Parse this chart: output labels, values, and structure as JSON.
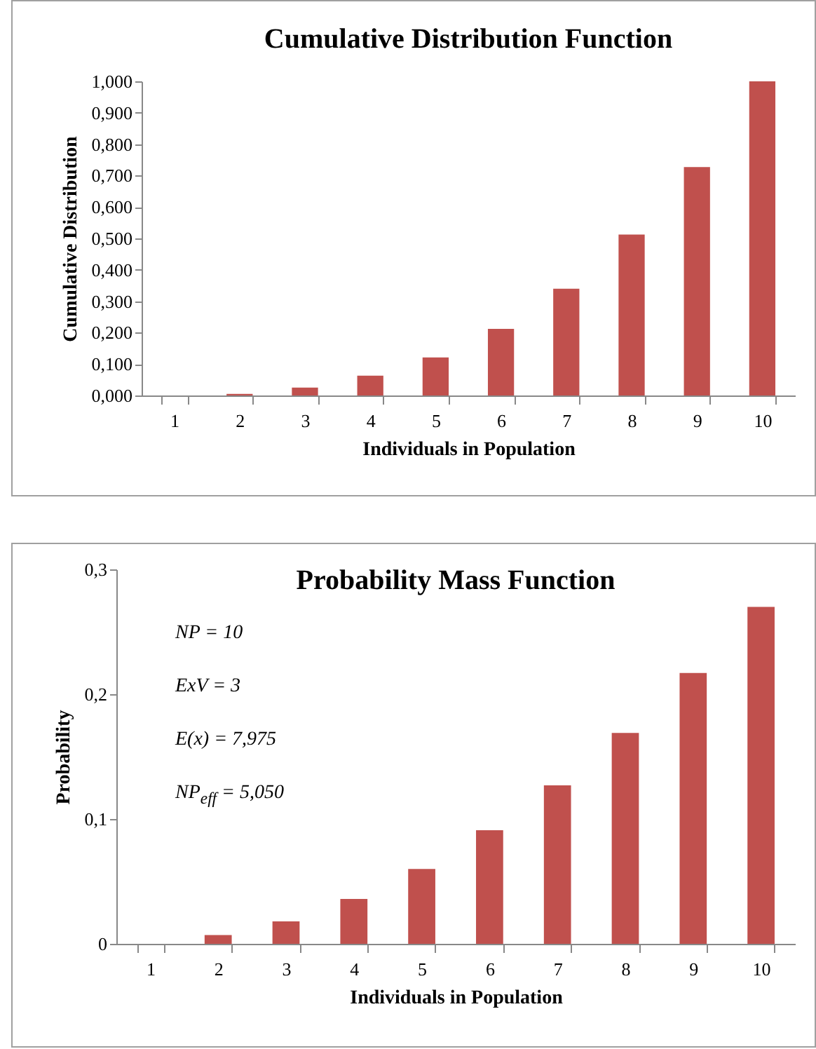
{
  "chart_data": [
    {
      "type": "bar",
      "title": "Cumulative Distribution  Function",
      "xlabel": "Individuals in Population",
      "ylabel": "Cumulative Distribution",
      "categories": [
        "1",
        "2",
        "3",
        "4",
        "5",
        "6",
        "7",
        "8",
        "9",
        "10"
      ],
      "values": [
        0,
        0.005,
        0.025,
        0.063,
        0.121,
        0.212,
        0.34,
        0.512,
        0.727,
        1.0
      ],
      "color": "#c0504d",
      "ylim": [
        0,
        1
      ],
      "yticks": [
        {
          "value": 0,
          "label": "0,000"
        },
        {
          "value": 0.1,
          "label": "0,100"
        },
        {
          "value": 0.2,
          "label": "0,200"
        },
        {
          "value": 0.3,
          "label": "0,300"
        },
        {
          "value": 0.4,
          "label": "0,400"
        },
        {
          "value": 0.5,
          "label": "0,500"
        },
        {
          "value": 0.6,
          "label": "0,600"
        },
        {
          "value": 0.7,
          "label": "0,700"
        },
        {
          "value": 0.8,
          "label": "0,800"
        },
        {
          "value": 0.9,
          "label": "0,900"
        },
        {
          "value": 1,
          "label": "1,000"
        }
      ]
    },
    {
      "type": "bar",
      "title": "Probability Mass Function",
      "xlabel": "Individuals in Population",
      "ylabel": "Probability",
      "categories": [
        "1",
        "2",
        "3",
        "4",
        "5",
        "6",
        "7",
        "8",
        "9",
        "10"
      ],
      "values": [
        0,
        0.007,
        0.018,
        0.036,
        0.06,
        0.091,
        0.127,
        0.169,
        0.217,
        0.27
      ],
      "color": "#c0504d",
      "ylim": [
        0,
        0.3
      ],
      "yticks": [
        0,
        {
          "value": 0.1,
          "label": "0,1"
        },
        {
          "value": 0.2,
          "label": "0,2"
        },
        {
          "value": 0.3,
          "label": "0,3"
        }
      ],
      "annotations": [
        "NP = 10",
        "ExV = 3",
        "E(x) = 7,975",
        "NP$_{eff}$ = 5,050"
      ]
    }
  ]
}
